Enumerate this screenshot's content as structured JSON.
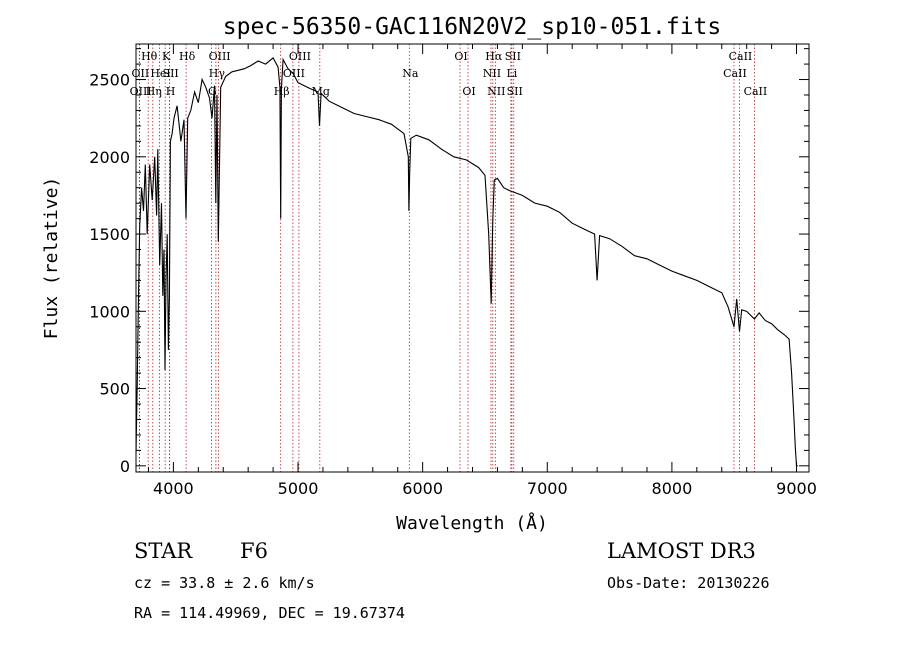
{
  "chart_data": {
    "type": "line",
    "title": "spec-56350-GAC116N20V2_sp10-051.fits",
    "xlabel": "Wavelength (Å)",
    "ylabel": "Flux (relative)",
    "xlim": [
      3700,
      9100
    ],
    "ylim": [
      -40,
      2730
    ],
    "xticks": [
      4000,
      5000,
      6000,
      7000,
      8000,
      9000
    ],
    "yticks": [
      0,
      500,
      1000,
      1500,
      2000,
      2500
    ],
    "series": [
      {
        "name": "spectrum",
        "x": [
          3700,
          3710,
          3720,
          3730,
          3745,
          3760,
          3775,
          3790,
          3810,
          3830,
          3850,
          3865,
          3875,
          3890,
          3905,
          3915,
          3925,
          3933,
          3941,
          3950,
          3960,
          3968,
          3976,
          3990,
          4005,
          4030,
          4060,
          4085,
          4101,
          4115,
          4140,
          4170,
          4200,
          4230,
          4260,
          4290,
          4310,
          4330,
          4340,
          4350,
          4360,
          4380,
          4420,
          4470,
          4520,
          4570,
          4620,
          4680,
          4740,
          4800,
          4840,
          4855,
          4861,
          4867,
          4880,
          4920,
          4960,
          5000,
          5050,
          5100,
          5160,
          5172,
          5185,
          5250,
          5350,
          5450,
          5550,
          5650,
          5750,
          5850,
          5885,
          5890,
          5896,
          5905,
          5950,
          6050,
          6150,
          6250,
          6350,
          6450,
          6500,
          6530,
          6550,
          6563,
          6575,
          6600,
          6650,
          6700,
          6800,
          6900,
          7000,
          7100,
          7200,
          7300,
          7380,
          7400,
          7420,
          7500,
          7600,
          7700,
          7800,
          7900,
          8000,
          8100,
          8200,
          8300,
          8400,
          8450,
          8498,
          8520,
          8542,
          8560,
          8600,
          8662,
          8700,
          8750,
          8800,
          8850,
          8900,
          8940,
          8960,
          8980,
          8990,
          9000,
          9010
        ],
        "y": [
          80,
          520,
          1100,
          1550,
          1800,
          1650,
          1950,
          1500,
          1950,
          1720,
          2000,
          1620,
          2050,
          1300,
          1700,
          1100,
          1400,
          620,
          1200,
          1500,
          750,
          1100,
          2100,
          2150,
          2250,
          2330,
          2100,
          2240,
          1600,
          2250,
          2300,
          2420,
          2350,
          2500,
          2450,
          2380,
          2250,
          2460,
          1700,
          2400,
          1450,
          2450,
          2520,
          2550,
          2560,
          2570,
          2590,
          2620,
          2600,
          2640,
          2580,
          2450,
          1600,
          2440,
          2630,
          2570,
          2540,
          2480,
          2460,
          2440,
          2420,
          2200,
          2410,
          2360,
          2320,
          2280,
          2260,
          2240,
          2210,
          2150,
          2000,
          1650,
          1900,
          2120,
          2140,
          2110,
          2050,
          2000,
          1980,
          1930,
          1880,
          1500,
          1050,
          1600,
          1850,
          1860,
          1800,
          1780,
          1750,
          1700,
          1680,
          1640,
          1570,
          1530,
          1500,
          1200,
          1490,
          1470,
          1420,
          1360,
          1340,
          1300,
          1260,
          1230,
          1200,
          1160,
          1120,
          1030,
          900,
          1080,
          870,
          1010,
          1000,
          950,
          990,
          940,
          920,
          880,
          850,
          820,
          600,
          300,
          120,
          0,
          0
        ]
      }
    ],
    "line_ids": [
      {
        "label": "Hθ",
        "x": 3798,
        "row": 1
      },
      {
        "label": "OII",
        "x": 3727,
        "row": 2
      },
      {
        "label": "OIII",
        "x": 3729,
        "row": 3
      },
      {
        "label": "Hη",
        "x": 3835,
        "row": 3
      },
      {
        "label": "HeI",
        "x": 3889,
        "row": 2
      },
      {
        "label": "K",
        "x": 3934,
        "row": 1
      },
      {
        "label": "SII",
        "x": 3970,
        "row": 2
      },
      {
        "label": "H",
        "x": 3969,
        "row": 3
      },
      {
        "label": "Hδ",
        "x": 4102,
        "row": 1
      },
      {
        "label": "OIII",
        "x": 4363,
        "row": 1
      },
      {
        "label": "Hγ",
        "x": 4341,
        "row": 2
      },
      {
        "label": "G",
        "x": 4305,
        "row": 3
      },
      {
        "label": "OIII",
        "x": 5007,
        "row": 1
      },
      {
        "label": "OIII",
        "x": 4959,
        "row": 2
      },
      {
        "label": "Hβ",
        "x": 4861,
        "row": 3
      },
      {
        "label": "Mg",
        "x": 5175,
        "row": 3
      },
      {
        "label": "Na",
        "x": 5893,
        "row": 2
      },
      {
        "label": "OI",
        "x": 6300,
        "row": 1
      },
      {
        "label": "OI",
        "x": 6364,
        "row": 3
      },
      {
        "label": "Hα",
        "x": 6563,
        "row": 1
      },
      {
        "label": "NII",
        "x": 6548,
        "row": 2
      },
      {
        "label": "NII",
        "x": 6583,
        "row": 3
      },
      {
        "label": "SII",
        "x": 6716,
        "row": 1
      },
      {
        "label": "Li",
        "x": 6708,
        "row": 2
      },
      {
        "label": "SII",
        "x": 6731,
        "row": 3
      },
      {
        "label": "CaII",
        "x": 8542,
        "row": 1
      },
      {
        "label": "CaII",
        "x": 8498,
        "row": 2
      },
      {
        "label": "CaII",
        "x": 8662,
        "row": 3
      }
    ]
  },
  "info": {
    "object_class": "STAR",
    "subclass": "F6",
    "release": "LAMOST DR3",
    "redshift": "cz = 33.8 ± 2.6 km/s",
    "obs_date": "Obs-Date: 20130226",
    "coords": "RA = 114.49969, DEC =  19.67374"
  }
}
